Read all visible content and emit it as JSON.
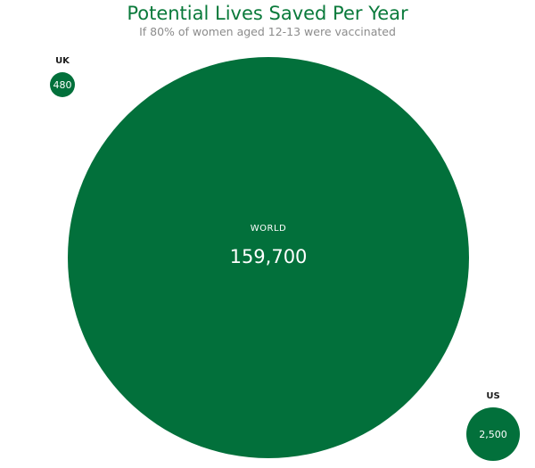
{
  "chart_data": {
    "type": "bubble",
    "title": "Potential Lives Saved Per Year",
    "subtitle": "If 80% of women aged 12-13 were vaccinated",
    "colors": {
      "bubble": "#02703b",
      "title": "#0a7a3b",
      "subtitle": "#8c8c8c"
    },
    "bubbles": [
      {
        "name": "UK",
        "value": 480,
        "value_label": "480"
      },
      {
        "name": "WORLD",
        "value": 159700,
        "value_label": "159,700"
      },
      {
        "name": "US",
        "value": 2500,
        "value_label": "2,500"
      }
    ]
  }
}
